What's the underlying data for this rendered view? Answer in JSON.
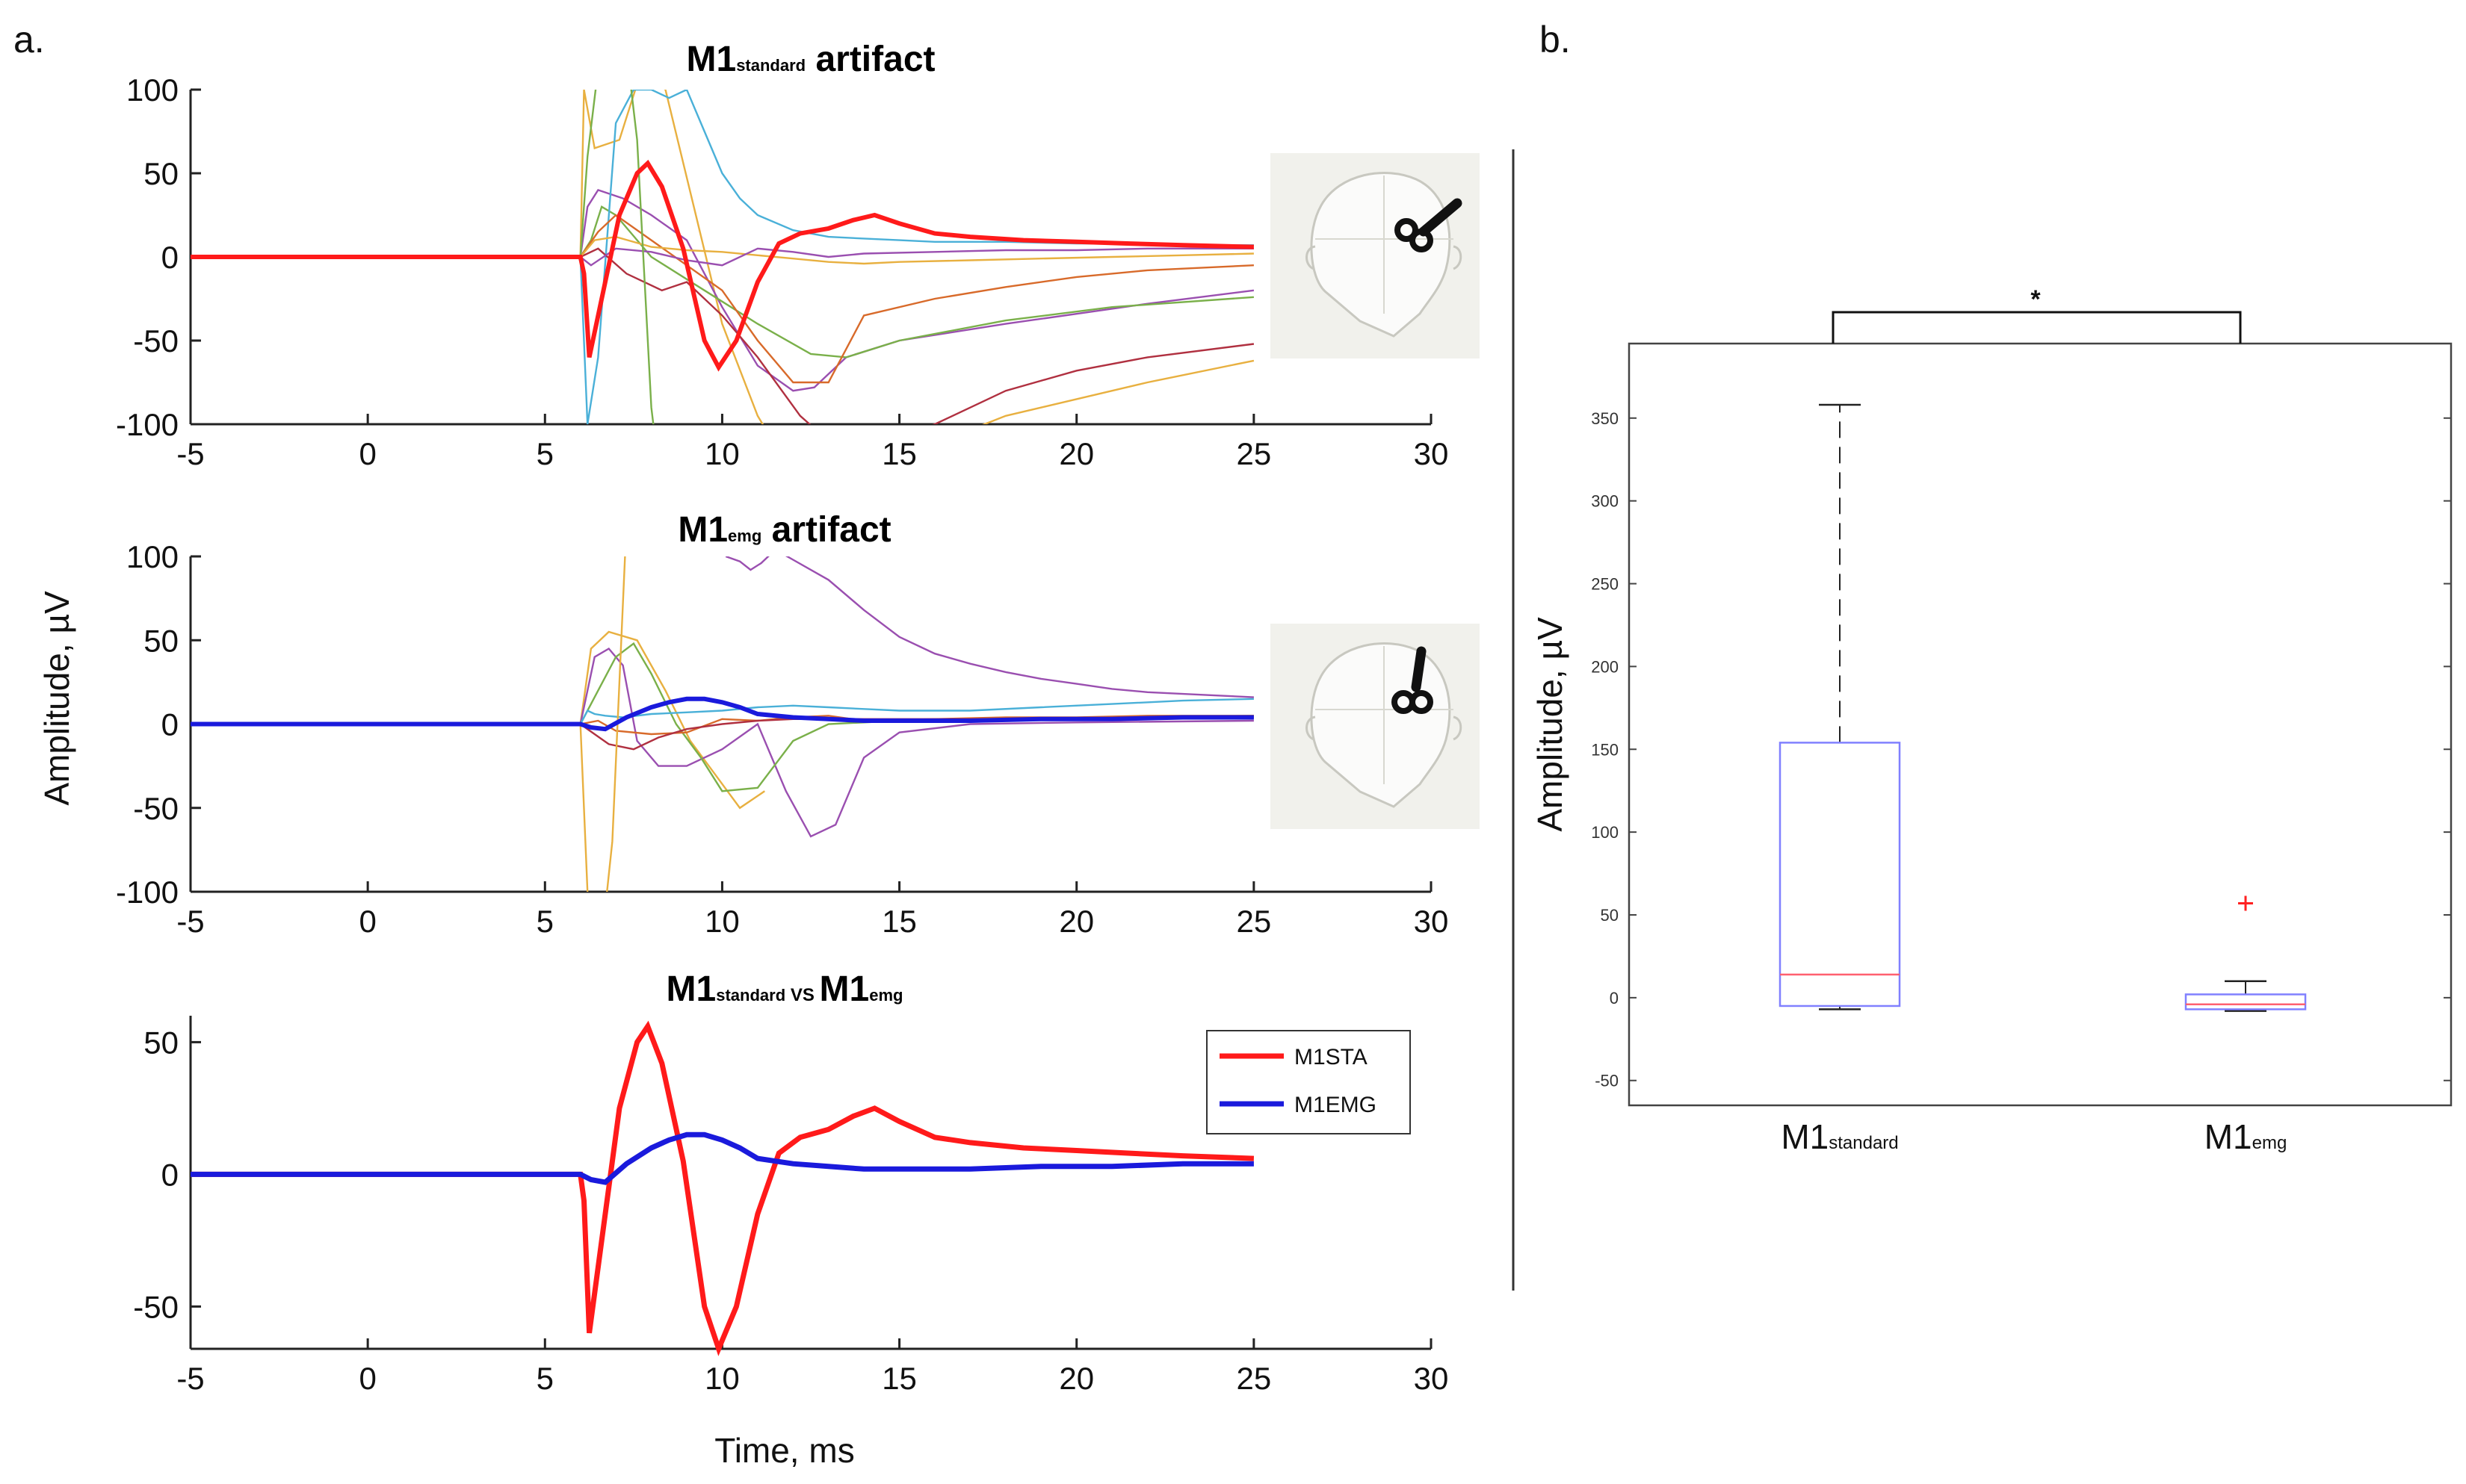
{
  "panel_a_label": "a.",
  "panel_b_label": "b.",
  "colors": {
    "standard": "#ff1a1a",
    "emg": "#1a1adc",
    "box": "#8080ff",
    "median": "#ff6070",
    "outlier": "#ff2020",
    "traces": [
      "#e8b040",
      "#9a4fb0",
      "#7ab04a",
      "#4ab0d8",
      "#d86a2a",
      "#b03040"
    ]
  },
  "chart_data": [
    {
      "type": "line",
      "id": "a1",
      "title_main": "M1",
      "title_sub": "standard",
      "title_tail": " artifact",
      "xlim": [
        -5,
        30
      ],
      "ylim": [
        -100,
        100
      ],
      "xticks": [
        -5,
        0,
        5,
        10,
        15,
        20,
        25,
        30
      ],
      "yticks": [
        -100,
        -50,
        0,
        50,
        100
      ],
      "ytick_labels": [
        "-100",
        "-50",
        "0",
        "50",
        "100"
      ],
      "mean_series": {
        "name": "M1 standard mean",
        "x": [
          -5,
          6,
          6.1,
          6.25,
          6.6,
          7.1,
          7.6,
          7.9,
          8.3,
          8.9,
          9.5,
          9.9,
          10.4,
          11,
          11.6,
          12.2,
          13,
          13.7,
          14.3,
          15,
          16,
          17,
          18.5,
          20,
          21.5,
          23,
          25
        ],
        "y": [
          0,
          0,
          -10,
          -60,
          -25,
          25,
          50,
          56,
          42,
          5,
          -50,
          -66,
          -50,
          -15,
          8,
          14,
          17,
          22,
          25,
          20,
          14,
          12,
          10,
          9,
          8,
          7,
          6
        ]
      },
      "trials": [
        {
          "x": [
            -5,
            6,
            6.1,
            6.4,
            7.1,
            7.7,
            8.4,
            9.2,
            10,
            11,
            12,
            13,
            15,
            18,
            22,
            25
          ],
          "y": [
            0,
            0,
            100,
            65,
            70,
            110,
            100,
            30,
            -40,
            -95,
            -130,
            -120,
            -120,
            -95,
            -75,
            -62
          ]
        },
        {
          "x": [
            -5,
            6,
            6.2,
            6.5,
            7.2,
            8,
            9,
            10,
            11,
            12,
            12.6,
            13.5,
            15,
            18,
            22,
            25
          ],
          "y": [
            0,
            0,
            30,
            40,
            35,
            25,
            10,
            -30,
            -65,
            -80,
            -78,
            -60,
            -50,
            -40,
            -28,
            -20
          ]
        },
        {
          "x": [
            -5,
            6,
            6.3,
            6.6,
            7,
            8,
            9.5,
            11,
            12.5,
            13.5,
            15,
            18,
            21,
            25
          ],
          "y": [
            0,
            0,
            10,
            30,
            25,
            0,
            -20,
            -40,
            -58,
            -60,
            -50,
            -38,
            -30,
            -24
          ]
        },
        {
          "x": [
            -5,
            6,
            6.2,
            6.5,
            7,
            7.5,
            8,
            8.5,
            9,
            9.5,
            10,
            10.5,
            11,
            12,
            13,
            14,
            15,
            16,
            18,
            20,
            22,
            24,
            25
          ],
          "y": [
            0,
            0,
            -100,
            -60,
            80,
            100,
            100,
            95,
            100,
            75,
            50,
            35,
            25,
            16,
            12,
            11,
            10,
            9,
            9,
            8,
            8,
            7,
            7
          ]
        },
        {
          "x": [
            -5,
            6,
            6.5,
            7,
            8,
            9,
            10,
            11,
            12,
            13,
            14,
            16,
            18,
            20,
            22,
            25
          ],
          "y": [
            0,
            0,
            15,
            25,
            10,
            -5,
            -20,
            -50,
            -75,
            -75,
            -35,
            -25,
            -18,
            -12,
            -8,
            -5
          ]
        },
        {
          "x": [
            -5,
            6,
            6.5,
            7.3,
            8.3,
            9,
            10,
            11,
            12.2,
            13,
            14,
            16,
            18,
            20,
            22,
            25
          ],
          "y": [
            0,
            0,
            5,
            -10,
            -20,
            -15,
            -35,
            -60,
            -95,
            -110,
            -115,
            -100,
            -80,
            -68,
            -60,
            -52
          ]
        },
        {
          "x": [
            -5,
            6,
            6.4,
            7,
            8,
            9,
            10,
            11,
            12,
            13,
            14,
            15,
            17,
            19,
            21,
            23,
            25
          ],
          "y": [
            0,
            0,
            10,
            12,
            6,
            4,
            3,
            1,
            -1,
            -3,
            -4,
            -3,
            -2,
            -1,
            0,
            1,
            2
          ]
        },
        {
          "x": [
            -5,
            6,
            6.3,
            7,
            8,
            9,
            10,
            11,
            12,
            13,
            14,
            16,
            18,
            20,
            22,
            25
          ],
          "y": [
            0,
            0,
            -5,
            5,
            3,
            -2,
            -5,
            5,
            3,
            0,
            2,
            3,
            4,
            4,
            5,
            5
          ]
        },
        {
          "x": [
            -5,
            6,
            6.2,
            6.6,
            7.1,
            7.6,
            8,
            8.4
          ],
          "y": [
            0,
            0,
            60,
            130,
            160,
            70,
            -90,
            -160
          ]
        }
      ]
    },
    {
      "type": "line",
      "id": "a2",
      "title_main": "M1",
      "title_sub": "emg",
      "title_tail": " artifact",
      "xlim": [
        -5,
        30
      ],
      "ylim": [
        -100,
        100
      ],
      "xticks": [
        -5,
        0,
        5,
        10,
        15,
        20,
        25,
        30
      ],
      "yticks": [
        -100,
        -50,
        0,
        50,
        100
      ],
      "ytick_labels": [
        "-100",
        "-50",
        "0",
        "50",
        "100"
      ],
      "mean_series": {
        "name": "M1 emg mean",
        "x": [
          -5,
          6,
          6.3,
          6.7,
          7.3,
          8,
          8.5,
          9,
          9.5,
          10,
          10.5,
          11,
          12,
          13,
          14,
          15,
          17,
          19,
          21,
          23,
          25
        ],
        "y": [
          0,
          0,
          -2,
          -3,
          4,
          10,
          13,
          15,
          15,
          13,
          10,
          6,
          4,
          3,
          2,
          2,
          2,
          3,
          3,
          4,
          4
        ]
      },
      "trials": [
        {
          "x": [
            -5,
            6,
            6.3,
            6.8,
            7.6,
            8.4,
            9.1,
            9.8,
            10.5,
            11.2
          ],
          "y": [
            0,
            0,
            45,
            55,
            50,
            20,
            -10,
            -30,
            -50,
            -40
          ]
        },
        {
          "x": [
            -5,
            6,
            6.4,
            6.8,
            7.2,
            7.6,
            8.2,
            9,
            10,
            11,
            11.8,
            12.5,
            13.2,
            14,
            15,
            17,
            20,
            25
          ],
          "y": [
            0,
            0,
            40,
            45,
            35,
            -10,
            -25,
            -25,
            -15,
            0,
            -40,
            -67,
            -60,
            -20,
            -5,
            0,
            1,
            2
          ]
        },
        {
          "x": [
            -5,
            6,
            6.5,
            7,
            7.5,
            8,
            8.7,
            9.4,
            10,
            11,
            12,
            13,
            15,
            18,
            22,
            25
          ],
          "y": [
            0,
            0,
            20,
            40,
            48,
            30,
            0,
            -20,
            -40,
            -38,
            -10,
            0,
            2,
            3,
            4,
            5
          ]
        },
        {
          "x": [
            -5,
            6,
            6.2,
            6.4,
            6.7,
            7.2,
            8,
            9,
            10,
            11,
            12,
            13,
            14,
            15,
            17,
            19,
            21,
            23,
            25
          ],
          "y": [
            0,
            0,
            8,
            6,
            5,
            4,
            6,
            7,
            8,
            10,
            11,
            10,
            9,
            8,
            8,
            10,
            12,
            14,
            15
          ]
        },
        {
          "x": [
            -5,
            6,
            6.5,
            7,
            8,
            9,
            10,
            11,
            12,
            13,
            14,
            16,
            18,
            20,
            22,
            25
          ],
          "y": [
            0,
            0,
            2,
            -4,
            -6,
            -5,
            3,
            2,
            4,
            5,
            2,
            3,
            4,
            4,
            5,
            5
          ]
        },
        {
          "x": [
            -5,
            6,
            6.4,
            6.8,
            7.5,
            8.2,
            9,
            10,
            11,
            12,
            13,
            15,
            18,
            21,
            25
          ],
          "y": [
            0,
            0,
            -6,
            -12,
            -15,
            -8,
            -3,
            0,
            2,
            3,
            3,
            3,
            3,
            3,
            4
          ]
        },
        {
          "x": [
            -5,
            6,
            6.2,
            6.5,
            6.9,
            7.3
          ],
          "y": [
            0,
            0,
            -100,
            -150,
            -70,
            120
          ]
        },
        {
          "x": [
            10.1,
            10.5,
            10.8,
            11.1,
            11.5,
            12,
            13,
            14,
            15,
            16,
            17,
            18,
            19,
            20,
            21,
            22,
            23,
            24,
            25
          ],
          "y": [
            100,
            97,
            92,
            96,
            104,
            98,
            86,
            68,
            52,
            42,
            36,
            31,
            27,
            24,
            21,
            19,
            18,
            17,
            16
          ]
        }
      ]
    },
    {
      "type": "line",
      "id": "a3",
      "title_main": "M1",
      "title_sub": "standard",
      "title_mid": " VS ",
      "title_main2": "M1",
      "title_sub2": "emg",
      "xlim": [
        -5,
        30
      ],
      "ylim": [
        -66,
        60
      ],
      "xticks": [
        -5,
        0,
        5,
        10,
        15,
        20,
        25,
        30
      ],
      "yticks": [
        -50,
        0,
        50
      ],
      "ytick_labels": [
        "-50",
        "0",
        "50"
      ],
      "xlabel": "Time, ms",
      "series": [
        {
          "name": "M1STA",
          "ref": "a1"
        },
        {
          "name": "M1EMG",
          "ref": "a2"
        }
      ]
    },
    {
      "type": "box",
      "id": "b",
      "ylabel": "Amplitude, µV",
      "ylim": [
        -65,
        395
      ],
      "yticks": [
        -50,
        0,
        50,
        100,
        150,
        200,
        250,
        300,
        350
      ],
      "ytick_labels": [
        "-50",
        "0",
        "50",
        "100",
        "150",
        "200",
        "250",
        "300",
        "350"
      ],
      "groups": [
        {
          "label_main": "M1",
          "label_sub": "standard",
          "min": -7,
          "q1": -5,
          "median": 14,
          "q3": 154,
          "max": 358,
          "outliers": []
        },
        {
          "label_main": "M1",
          "label_sub": "emg",
          "min": -8,
          "q1": -7,
          "median": -4,
          "q3": 2,
          "max": 10,
          "outliers": [
            57
          ]
        }
      ],
      "significance": "*"
    }
  ],
  "shared": {
    "ylabel_a": "Amplitude, µV"
  }
}
